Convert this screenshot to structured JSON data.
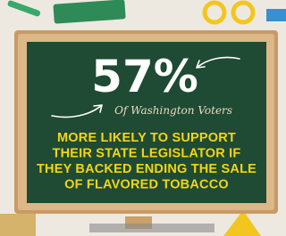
{
  "board": {
    "stat": "57%",
    "subtitle": "Of Washington Voters",
    "message_lines": [
      "MORE LIKELY TO SUPPORT",
      "THEIR STATE LEGISLATOR IF",
      "THEY BACKED ENDING THE SALE",
      "OF FLAVORED TOBACCO"
    ]
  }
}
